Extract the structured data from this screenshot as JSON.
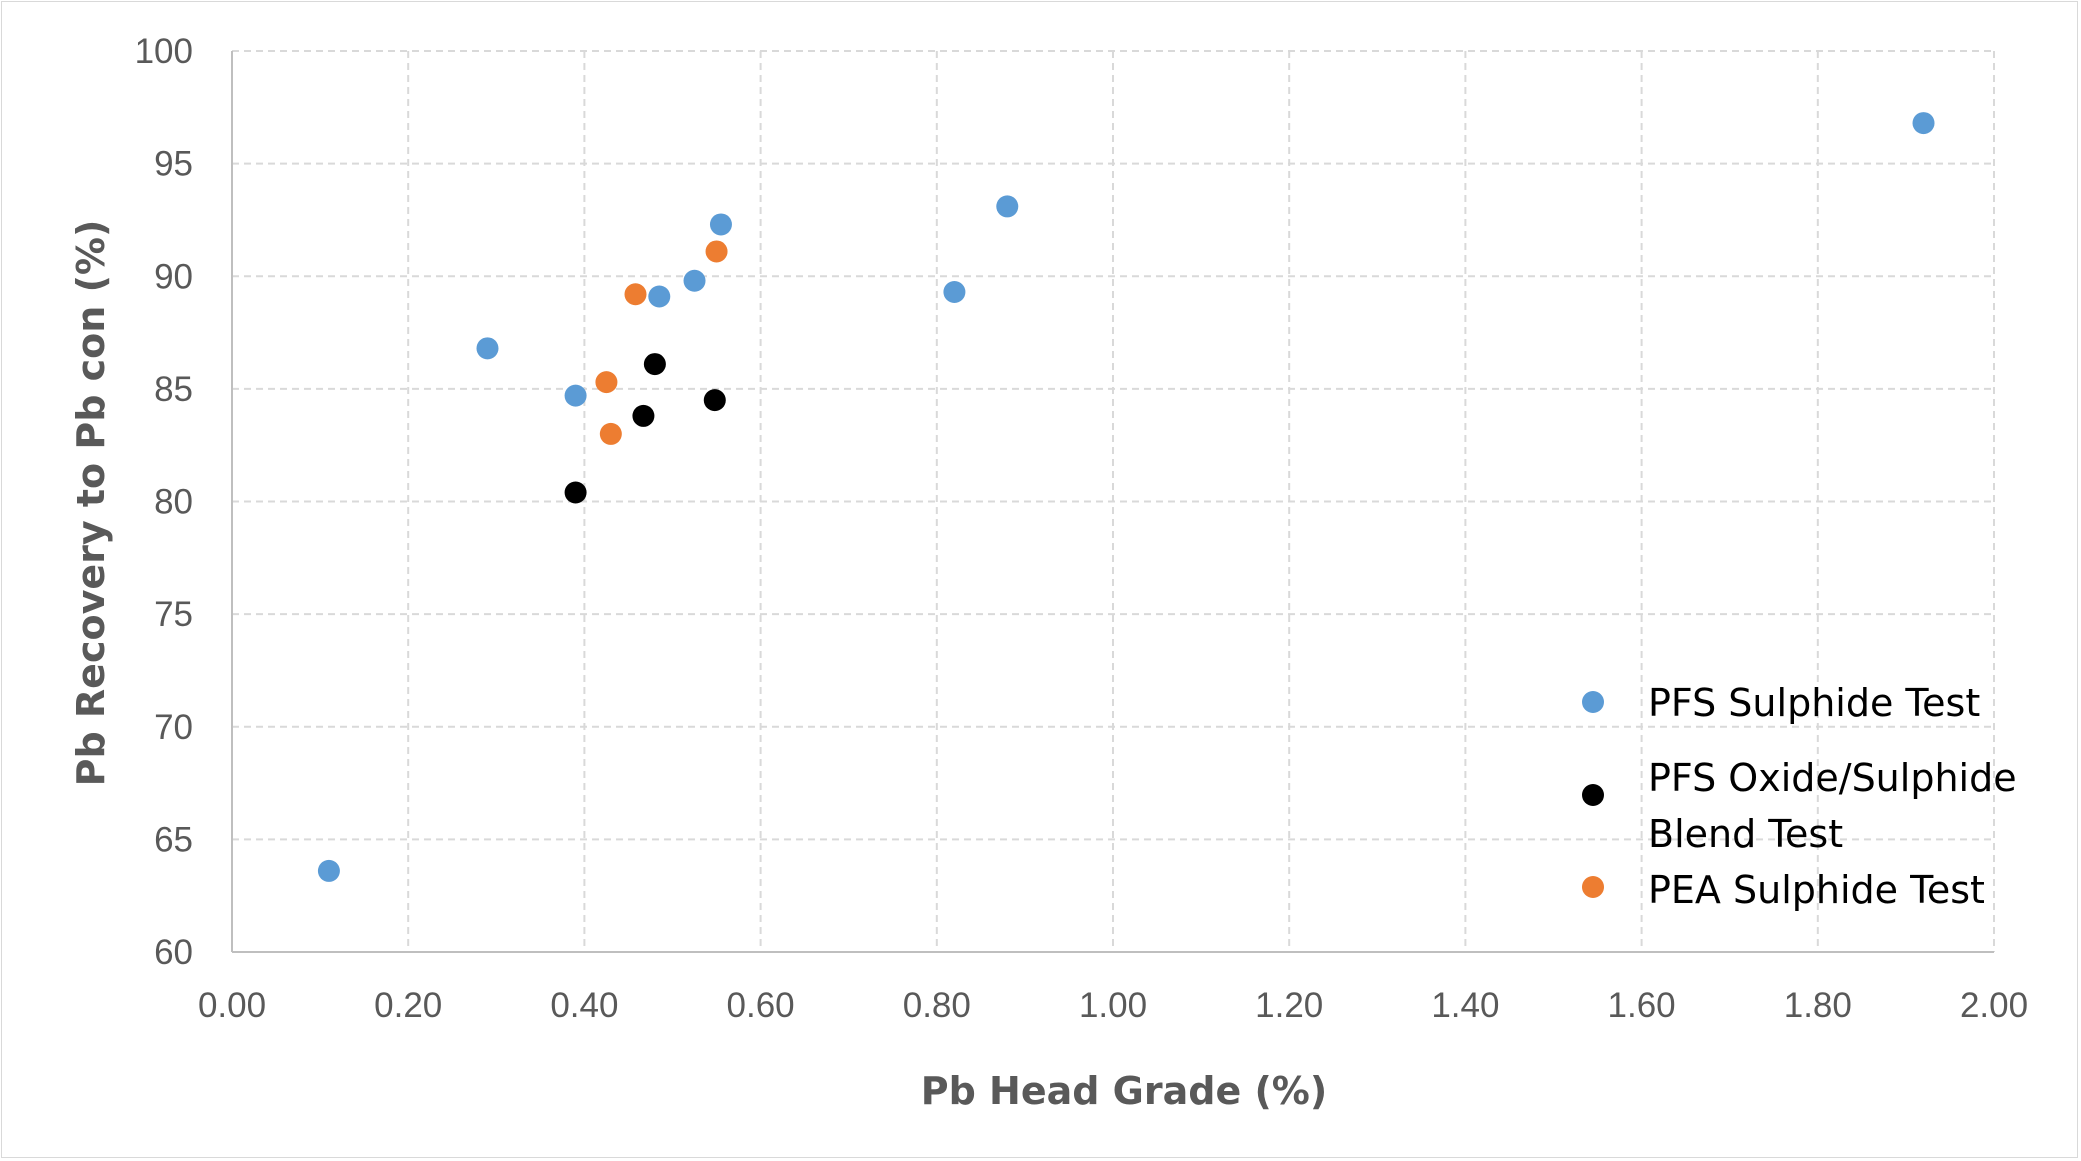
{
  "chart_data": {
    "type": "scatter",
    "title": "",
    "xlabel": "Pb Head Grade (%)",
    "ylabel": "Pb Recovery to Pb con (%)",
    "xlim": [
      0,
      2
    ],
    "ylim": [
      60,
      100
    ],
    "x_ticks": [
      0,
      0.2,
      0.4,
      0.6,
      0.8,
      1.0,
      1.2,
      1.4,
      1.6,
      1.8,
      2.0
    ],
    "x_tick_labels": [
      "0.00",
      "0.20",
      "0.40",
      "0.60",
      "0.80",
      "1.00",
      "1.20",
      "1.40",
      "1.60",
      "1.80",
      "2.00"
    ],
    "y_ticks": [
      60,
      65,
      70,
      75,
      80,
      85,
      90,
      95,
      100
    ],
    "y_tick_labels": [
      "60",
      "65",
      "70",
      "75",
      "80",
      "85",
      "90",
      "95",
      "100"
    ],
    "grid": true,
    "legend_position": "bottom-right",
    "series": [
      {
        "name": "PFS Sulphide Test",
        "legend_lines": [
          "PFS Sulphide Test"
        ],
        "color": "#5b9bd5",
        "points": [
          {
            "x": 0.11,
            "y": 63.6
          },
          {
            "x": 0.29,
            "y": 86.8
          },
          {
            "x": 0.39,
            "y": 84.7
          },
          {
            "x": 0.485,
            "y": 89.1
          },
          {
            "x": 0.525,
            "y": 89.8
          },
          {
            "x": 0.555,
            "y": 92.3
          },
          {
            "x": 0.82,
            "y": 89.3
          },
          {
            "x": 0.88,
            "y": 93.1
          },
          {
            "x": 1.92,
            "y": 96.8
          }
        ]
      },
      {
        "name": "PFS Oxide/Sulphide Blend Test",
        "legend_lines": [
          "PFS Oxide/Sulphide",
          "Blend Test"
        ],
        "color": "#000000",
        "points": [
          {
            "x": 0.39,
            "y": 80.4
          },
          {
            "x": 0.467,
            "y": 83.8
          },
          {
            "x": 0.48,
            "y": 86.1
          },
          {
            "x": 0.548,
            "y": 84.5
          }
        ]
      },
      {
        "name": "PEA Sulphide Test",
        "legend_lines": [
          "PEA Sulphide Test"
        ],
        "color": "#ed7d31",
        "points": [
          {
            "x": 0.425,
            "y": 85.3
          },
          {
            "x": 0.43,
            "y": 83.0
          },
          {
            "x": 0.458,
            "y": 89.2
          },
          {
            "x": 0.55,
            "y": 91.1
          }
        ]
      }
    ]
  }
}
